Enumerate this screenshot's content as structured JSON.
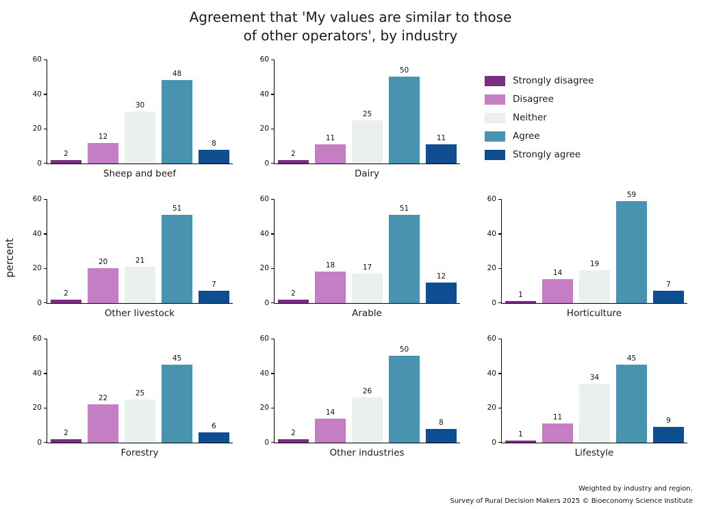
{
  "title_line1": "Agreement that 'My values are similar to those",
  "title_line2": "of other operators', by industry",
  "ylabel": "percent",
  "footer": {
    "line1": "Weighted by industry and region.",
    "line2": "Survey of Rural Decision Makers 2025 © Bioeconomy Science Institute"
  },
  "chart_data": {
    "type": "bar",
    "title": "Agreement that 'My values are similar to those of other operators', by industry",
    "ylabel": "percent",
    "ylim": [
      0,
      60
    ],
    "yticks": [
      0,
      20,
      40,
      60
    ],
    "grid": false,
    "legend_position": "top-right",
    "categories": [
      "Strongly disagree",
      "Disagree",
      "Neither",
      "Agree",
      "Strongly agree"
    ],
    "colors": [
      "#7b2d83",
      "#c47ec4",
      "#e9f0ee",
      "#4793b0",
      "#0e4d8f"
    ],
    "panels": [
      {
        "industry": "Sheep and beef",
        "values": [
          2,
          12,
          30,
          48,
          8
        ]
      },
      {
        "industry": "Dairy",
        "values": [
          2,
          11,
          25,
          50,
          11
        ]
      },
      {
        "industry": "Other livestock",
        "values": [
          2,
          20,
          21,
          51,
          7
        ]
      },
      {
        "industry": "Arable",
        "values": [
          2,
          18,
          17,
          51,
          12
        ]
      },
      {
        "industry": "Horticulture",
        "values": [
          1,
          14,
          19,
          59,
          7
        ]
      },
      {
        "industry": "Forestry",
        "values": [
          2,
          22,
          25,
          45,
          6
        ]
      },
      {
        "industry": "Other industries",
        "values": [
          2,
          14,
          26,
          50,
          8
        ]
      },
      {
        "industry": "Lifestyle",
        "values": [
          1,
          11,
          34,
          45,
          9
        ]
      }
    ]
  }
}
